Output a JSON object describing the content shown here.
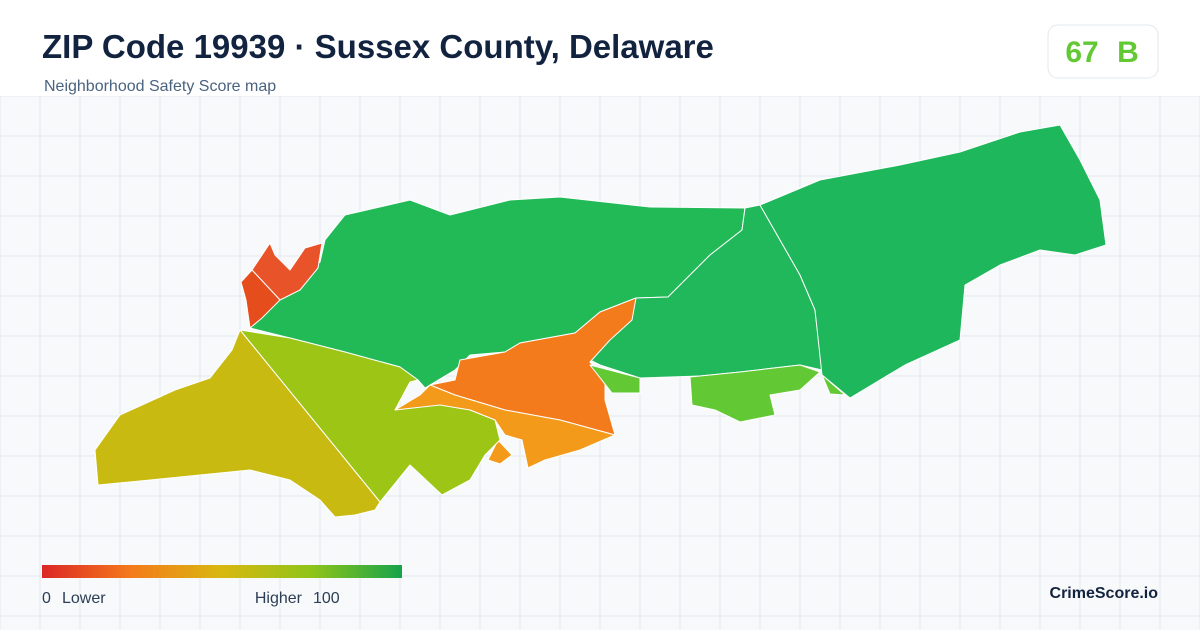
{
  "header": {
    "title": "ZIP Code 19939 · Sussex County, Delaware",
    "subtitle": "Neighborhood Safety Score map",
    "score": "67",
    "grade": "B"
  },
  "legend": {
    "min": "0",
    "min_label": "Lower",
    "max_label": "Higher",
    "max": "100"
  },
  "footer": {
    "brand": "CrimeScore.io"
  }
}
